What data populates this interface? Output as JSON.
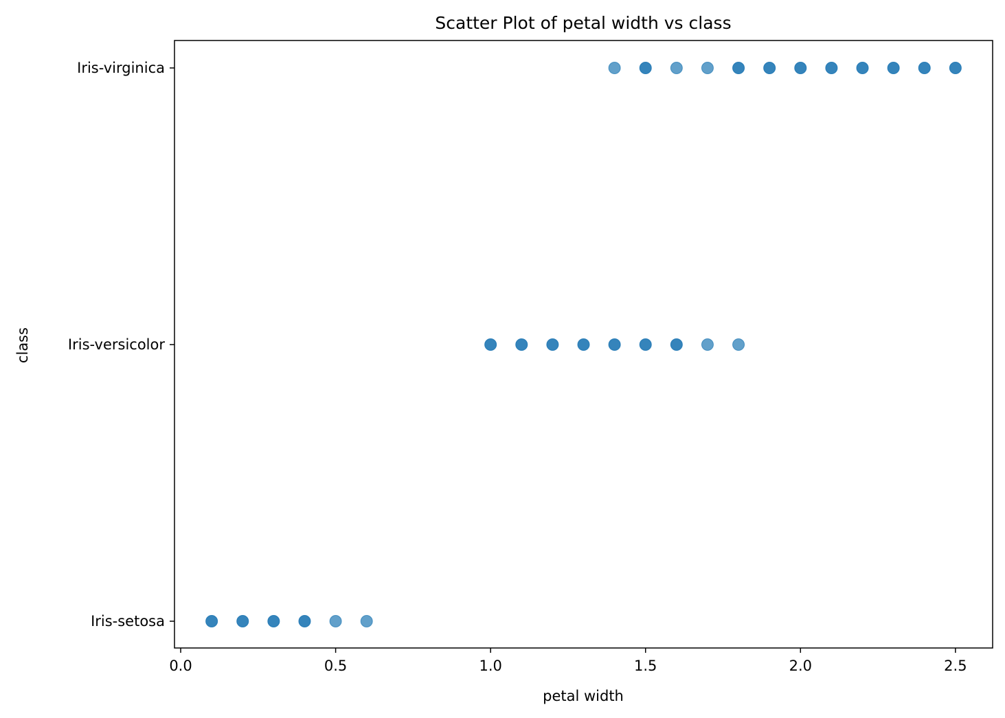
{
  "chart_data": {
    "type": "scatter",
    "title": "Scatter Plot of petal width vs class",
    "xlabel": "petal width",
    "ylabel": "class",
    "xlim": [
      -0.02,
      2.62
    ],
    "x_ticks": [
      "0.0",
      "0.5",
      "1.0",
      "1.5",
      "2.0",
      "2.5"
    ],
    "categories": [
      "Iris-setosa",
      "Iris-versicolor",
      "Iris-virginica"
    ],
    "grid": false,
    "legend": "none",
    "marker_color": "#1f77b4",
    "series": [
      {
        "points": [
          {
            "x": 0.1,
            "y": "Iris-setosa",
            "opacity": 0.9
          },
          {
            "x": 0.2,
            "y": "Iris-setosa",
            "opacity": 0.9
          },
          {
            "x": 0.3,
            "y": "Iris-setosa",
            "opacity": 0.9
          },
          {
            "x": 0.4,
            "y": "Iris-setosa",
            "opacity": 0.9
          },
          {
            "x": 0.5,
            "y": "Iris-setosa",
            "opacity": 0.7
          },
          {
            "x": 0.6,
            "y": "Iris-setosa",
            "opacity": 0.7
          },
          {
            "x": 1.0,
            "y": "Iris-versicolor",
            "opacity": 0.9
          },
          {
            "x": 1.1,
            "y": "Iris-versicolor",
            "opacity": 0.9
          },
          {
            "x": 1.2,
            "y": "Iris-versicolor",
            "opacity": 0.9
          },
          {
            "x": 1.3,
            "y": "Iris-versicolor",
            "opacity": 0.9
          },
          {
            "x": 1.4,
            "y": "Iris-versicolor",
            "opacity": 0.9
          },
          {
            "x": 1.5,
            "y": "Iris-versicolor",
            "opacity": 0.9
          },
          {
            "x": 1.6,
            "y": "Iris-versicolor",
            "opacity": 0.9
          },
          {
            "x": 1.7,
            "y": "Iris-versicolor",
            "opacity": 0.7
          },
          {
            "x": 1.8,
            "y": "Iris-versicolor",
            "opacity": 0.7
          },
          {
            "x": 1.4,
            "y": "Iris-virginica",
            "opacity": 0.7
          },
          {
            "x": 1.5,
            "y": "Iris-virginica",
            "opacity": 0.9
          },
          {
            "x": 1.6,
            "y": "Iris-virginica",
            "opacity": 0.7
          },
          {
            "x": 1.7,
            "y": "Iris-virginica",
            "opacity": 0.7
          },
          {
            "x": 1.8,
            "y": "Iris-virginica",
            "opacity": 0.9
          },
          {
            "x": 1.9,
            "y": "Iris-virginica",
            "opacity": 0.9
          },
          {
            "x": 2.0,
            "y": "Iris-virginica",
            "opacity": 0.9
          },
          {
            "x": 2.1,
            "y": "Iris-virginica",
            "opacity": 0.9
          },
          {
            "x": 2.2,
            "y": "Iris-virginica",
            "opacity": 0.9
          },
          {
            "x": 2.3,
            "y": "Iris-virginica",
            "opacity": 0.9
          },
          {
            "x": 2.4,
            "y": "Iris-virginica",
            "opacity": 0.9
          },
          {
            "x": 2.5,
            "y": "Iris-virginica",
            "opacity": 0.9
          }
        ]
      }
    ]
  }
}
